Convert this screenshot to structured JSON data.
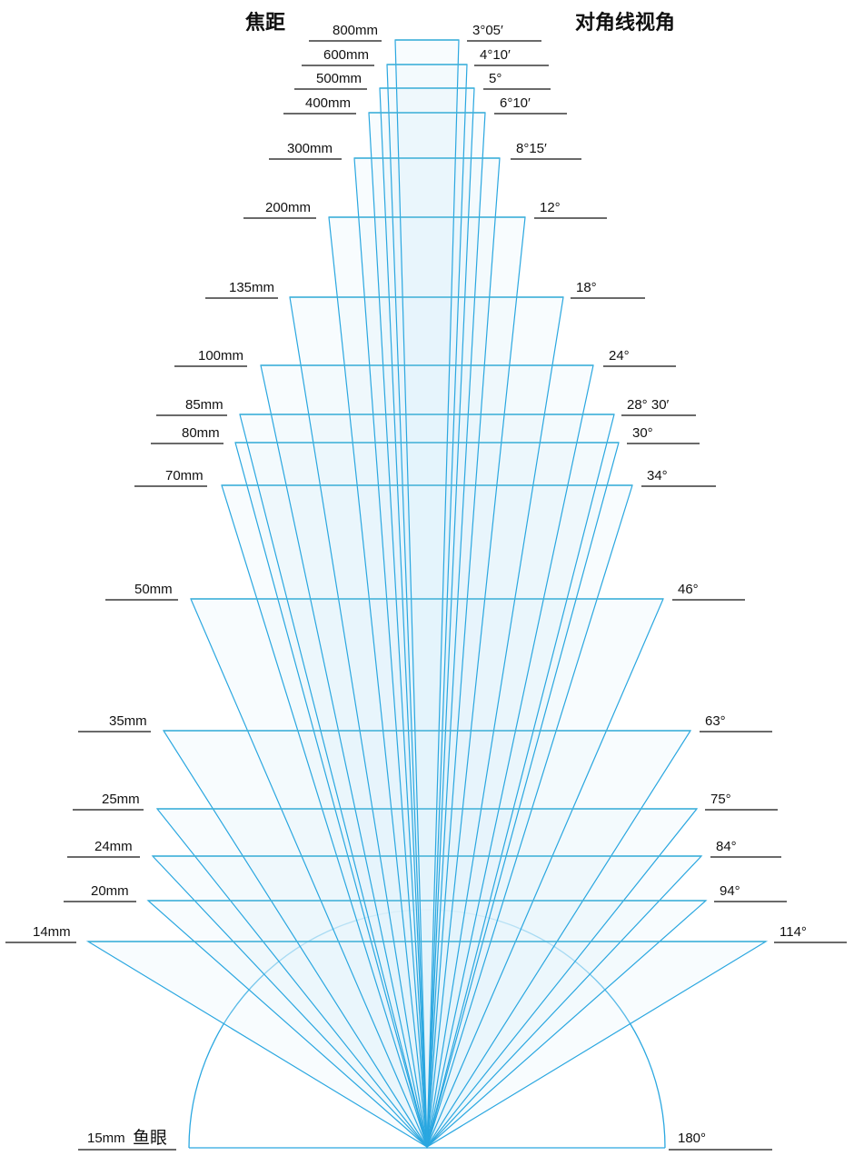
{
  "header": {
    "focal_title": "焦距",
    "angle_title": "对角线视角"
  },
  "colors": {
    "ray": "#2aa7e0",
    "ray_fill": "#e3f3fb",
    "bar": "#3fb0d8",
    "underline": "#111111",
    "text": "#111111"
  },
  "lenses": [
    {
      "focal": "800mm",
      "angle": "3°05′"
    },
    {
      "focal": "600mm",
      "angle": "4°10′"
    },
    {
      "focal": "500mm",
      "angle": "5°"
    },
    {
      "focal": "400mm",
      "angle": "6°10′"
    },
    {
      "focal": "300mm",
      "angle": "8°15′"
    },
    {
      "focal": "200mm",
      "angle": "12°"
    },
    {
      "focal": "135mm",
      "angle": "18°"
    },
    {
      "focal": "100mm",
      "angle": "24°"
    },
    {
      "focal": "85mm",
      "angle": "28° 30′"
    },
    {
      "focal": "80mm",
      "angle": "30°"
    },
    {
      "focal": "70mm",
      "angle": "34°"
    },
    {
      "focal": "50mm",
      "angle": "46°"
    },
    {
      "focal": "35mm",
      "angle": "63°"
    },
    {
      "focal": "25mm",
      "angle": "75°"
    },
    {
      "focal": "24mm",
      "angle": "84°"
    },
    {
      "focal": "20mm",
      "angle": "94°"
    },
    {
      "focal": "14mm",
      "angle": "114°"
    }
  ],
  "fisheye": {
    "focal": "15mm",
    "focal_suffix": "鱼眼",
    "angle": "180°"
  }
}
